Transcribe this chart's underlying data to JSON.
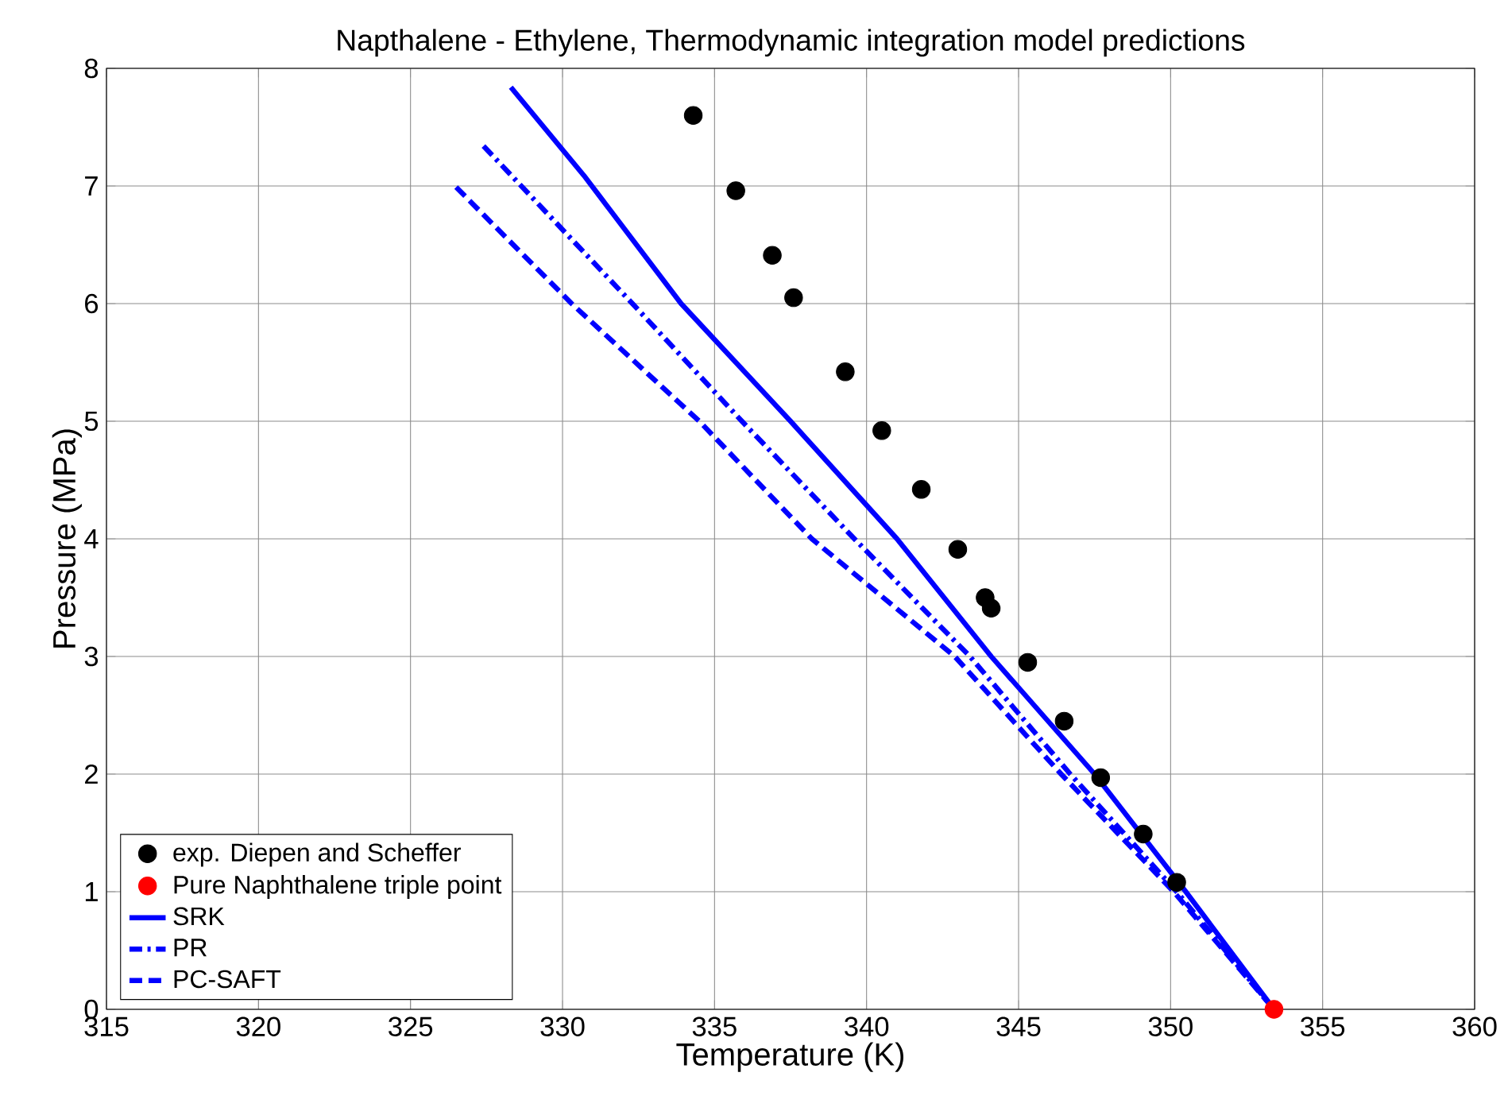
{
  "chart_data": {
    "type": "line",
    "title": "Napthalene - Ethylene, Thermodynamic integration model predictions",
    "xlabel": "Temperature (K)",
    "ylabel": "Pressure (MPa)",
    "xlim": [
      315,
      360
    ],
    "xticks": [
      315,
      320,
      325,
      330,
      335,
      340,
      345,
      350,
      355,
      360
    ],
    "ylim": [
      0,
      8
    ],
    "yticks": [
      0,
      1,
      2,
      3,
      4,
      5,
      6,
      7,
      8
    ],
    "grid": true,
    "legend": "bottom left",
    "series": [
      {
        "name": "exp. Diepen and Scheffer",
        "type": "scatter",
        "marker": "circle",
        "color": "#000000",
        "x": [
          334.3,
          335.7,
          336.9,
          337.6,
          339.3,
          340.5,
          341.8,
          343.0,
          343.9,
          344.1,
          345.3,
          346.5,
          347.7,
          349.1,
          350.2
        ],
        "values": [
          7.6,
          6.96,
          6.41,
          6.05,
          5.42,
          4.92,
          4.42,
          3.91,
          3.5,
          3.41,
          2.95,
          2.45,
          1.97,
          1.49,
          1.08
        ]
      },
      {
        "name": "Pure Naphthalene triple point",
        "type": "scatter",
        "marker": "circle",
        "color": "#ff0000",
        "x": [
          353.4
        ],
        "values": [
          0
        ]
      },
      {
        "name": "SRK",
        "type": "line",
        "line_style": "solid",
        "color": "#0000ff",
        "x": [
          328.3,
          330.7,
          333.9,
          337.5,
          341.0,
          344.1,
          347.5,
          350.5,
          353.4
        ],
        "values": [
          7.84,
          7.09,
          6,
          5,
          4,
          3,
          2,
          1,
          0
        ]
      },
      {
        "name": "PR",
        "type": "line",
        "line_style": "dashdot",
        "color": "#0000ff",
        "x": [
          327.4,
          332.3,
          335.9,
          339.6,
          343.4,
          346.7,
          350.2,
          353.4
        ],
        "values": [
          7.34,
          6,
          5,
          4,
          3,
          2,
          1,
          0
        ]
      },
      {
        "name": "PC-SAFT",
        "type": "line",
        "line_style": "dashed",
        "color": "#0000ff",
        "x": [
          326.5,
          330.3,
          334.5,
          338.2,
          342.9,
          346.4,
          350.1,
          353.4
        ],
        "values": [
          6.99,
          6,
          5,
          4,
          3,
          2,
          1,
          0
        ]
      }
    ]
  }
}
